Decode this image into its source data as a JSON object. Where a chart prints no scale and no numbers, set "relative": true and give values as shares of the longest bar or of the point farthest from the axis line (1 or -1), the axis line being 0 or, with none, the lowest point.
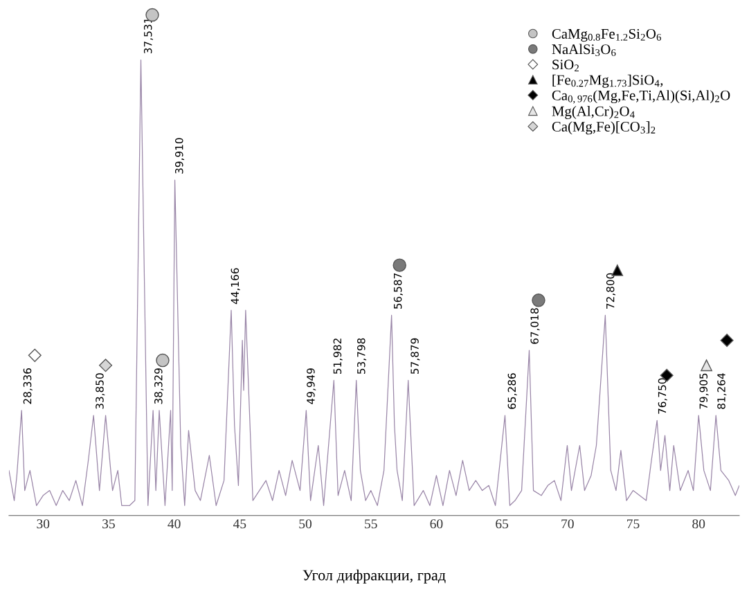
{
  "chart_data": {
    "type": "line",
    "relative": true,
    "xlabel": "Угол дифракции, град",
    "xlim": [
      27.4,
      83.1
    ],
    "xticks": [
      30,
      35,
      40,
      45,
      50,
      55,
      60,
      65,
      70,
      75,
      80
    ],
    "grid": false,
    "legend": "top right",
    "series": [
      {
        "color": "#9a86a8",
        "marker": "none",
        "line_style": "solid",
        "x": [
          27.4,
          27.8,
          28.0,
          28.36,
          28.6,
          29.0,
          29.5,
          30.0,
          30.5,
          31.0,
          31.5,
          32.0,
          32.5,
          33.0,
          33.45,
          33.85,
          34.3,
          34.77,
          35.3,
          35.7,
          36.0,
          36.6,
          37.0,
          37.46,
          38.0,
          38.39,
          38.6,
          38.86,
          39.3,
          39.73,
          39.85,
          40.05,
          40.5,
          40.8,
          41.1,
          41.6,
          42.0,
          42.68,
          43.2,
          43.8,
          44.35,
          44.6,
          44.9,
          45.2,
          45.3,
          45.45,
          46.0,
          46.5,
          47.0,
          47.5,
          48.0,
          48.5,
          49.0,
          49.6,
          50.07,
          50.4,
          50.99,
          51.4,
          52.18,
          52.5,
          53.0,
          53.5,
          53.89,
          54.2,
          54.6,
          55.0,
          55.5,
          56.0,
          56.58,
          56.8,
          57.0,
          57.4,
          57.85,
          58.3,
          59.0,
          59.5,
          60.0,
          60.5,
          61.0,
          61.5,
          62.0,
          62.5,
          63.0,
          63.5,
          64.0,
          64.5,
          65.23,
          65.6,
          66.0,
          66.5,
          67.08,
          67.4,
          68.0,
          68.5,
          69.0,
          69.5,
          69.98,
          70.3,
          70.93,
          71.3,
          71.8,
          72.2,
          72.88,
          73.3,
          73.7,
          74.07,
          74.5,
          75.0,
          75.5,
          76.0,
          76.4,
          76.83,
          77.1,
          77.43,
          77.8,
          78.1,
          78.6,
          79.2,
          79.6,
          80.0,
          80.4,
          80.9,
          81.32,
          81.7,
          82.3,
          82.8,
          83.1
        ],
        "values": [
          0.09,
          0.03,
          0.08,
          0.21,
          0.05,
          0.09,
          0.02,
          0.04,
          0.05,
          0.02,
          0.05,
          0.03,
          0.07,
          0.02,
          0.11,
          0.2,
          0.05,
          0.2,
          0.05,
          0.09,
          0.02,
          0.02,
          0.03,
          0.91,
          0.02,
          0.21,
          0.05,
          0.21,
          0.02,
          0.21,
          0.05,
          0.67,
          0.14,
          0.02,
          0.17,
          0.05,
          0.03,
          0.12,
          0.02,
          0.07,
          0.41,
          0.18,
          0.06,
          0.35,
          0.25,
          0.41,
          0.03,
          0.05,
          0.07,
          0.03,
          0.09,
          0.04,
          0.11,
          0.05,
          0.21,
          0.03,
          0.14,
          0.02,
          0.27,
          0.04,
          0.09,
          0.03,
          0.27,
          0.09,
          0.03,
          0.05,
          0.02,
          0.09,
          0.4,
          0.18,
          0.09,
          0.03,
          0.27,
          0.02,
          0.05,
          0.02,
          0.08,
          0.02,
          0.09,
          0.04,
          0.11,
          0.05,
          0.07,
          0.05,
          0.06,
          0.02,
          0.2,
          0.02,
          0.03,
          0.05,
          0.33,
          0.05,
          0.04,
          0.06,
          0.07,
          0.03,
          0.14,
          0.05,
          0.14,
          0.05,
          0.08,
          0.14,
          0.4,
          0.09,
          0.05,
          0.13,
          0.03,
          0.05,
          0.04,
          0.03,
          0.11,
          0.19,
          0.09,
          0.16,
          0.05,
          0.14,
          0.05,
          0.09,
          0.05,
          0.2,
          0.09,
          0.05,
          0.2,
          0.09,
          0.07,
          0.04,
          0.06
        ]
      },
      {
        "type": "scatter",
        "name": "CaMg$_{0.8}$Fe$_{1.2}$Si$_{2}$O$_{6}$",
        "color": "#c4c4c4",
        "marker": "circle",
        "x": [
          38.33,
          39.12
        ],
        "values": [
          1.0,
          0.31
        ]
      },
      {
        "type": "scatter",
        "name": "NaAlSi$_{3}$O$_{6}$",
        "color": "#7a7a7a",
        "marker": "circle",
        "x": [
          57.19,
          67.79
        ],
        "values": [
          0.5,
          0.43
        ]
      },
      {
        "type": "scatter",
        "name": "SiO$_{2}$",
        "color": "#ffffff",
        "marker": "diamond",
        "x": [
          29.37
        ],
        "values": [
          0.32
        ]
      },
      {
        "type": "scatter",
        "name": "[Fe$_{0.27}$Mg$_{1.73}$]SiO$_{4}$,",
        "color": "#000000",
        "marker": "triangle",
        "x": [
          73.8
        ],
        "values": [
          0.49
        ]
      },
      {
        "type": "scatter",
        "name": "Ca$_{0,976}$(Mg,Fe,Ti,Al)(Si,Al)$_{2}$O",
        "color": "#000000",
        "marker": "diamond",
        "x": [
          77.57,
          82.16
        ],
        "values": [
          0.28,
          0.35
        ]
      },
      {
        "type": "scatter",
        "name": "Mg(Al,Cr)$_{2}$O$_{4}$",
        "color": "#e6e6e6",
        "marker": "triangle",
        "x": [
          80.6
        ],
        "values": [
          0.3
        ]
      },
      {
        "type": "scatter",
        "name": "Ca(Mg,Fe)[CO$_{3}$]$_{2}$",
        "color": "#d6d6d6",
        "marker": "diamond",
        "x": [
          34.77
        ],
        "values": [
          0.3
        ]
      }
    ],
    "annotations": [
      {
        "text": "28,336",
        "x": 28.336,
        "y": 0.21
      },
      {
        "text": "33,850",
        "x": 33.85,
        "y": 0.2
      },
      {
        "text": "37,531",
        "x": 37.531,
        "y": 0.91
      },
      {
        "text": "38,329",
        "x": 38.329,
        "y": 0.21
      },
      {
        "text": "39,910",
        "x": 39.91,
        "y": 0.67
      },
      {
        "text": "44,166",
        "x": 44.166,
        "y": 0.41
      },
      {
        "text": "49,949",
        "x": 49.949,
        "y": 0.21
      },
      {
        "text": "51,982",
        "x": 51.982,
        "y": 0.27
      },
      {
        "text": "53,798",
        "x": 53.798,
        "y": 0.27
      },
      {
        "text": "56,587",
        "x": 56.587,
        "y": 0.4
      },
      {
        "text": "57,879",
        "x": 57.879,
        "y": 0.27
      },
      {
        "text": "65,286",
        "x": 65.286,
        "y": 0.2
      },
      {
        "text": "67,018",
        "x": 67.018,
        "y": 0.33
      },
      {
        "text": "72,800",
        "x": 72.8,
        "y": 0.4
      },
      {
        "text": "76,750",
        "x": 76.75,
        "y": 0.19
      },
      {
        "text": "79,905",
        "x": 79.905,
        "y": 0.2
      },
      {
        "text": "81,264",
        "x": 81.264,
        "y": 0.2
      }
    ]
  }
}
